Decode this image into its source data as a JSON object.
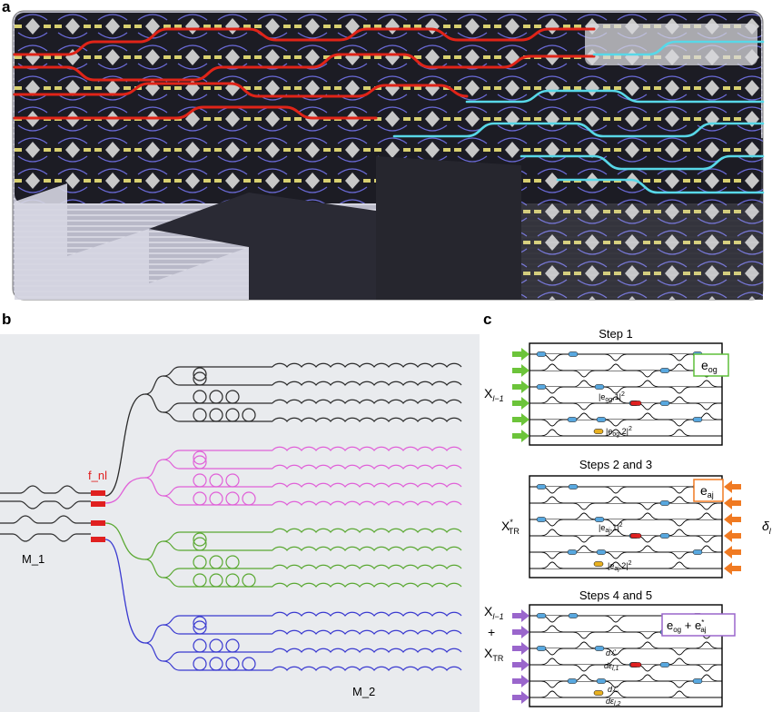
{
  "panels": {
    "a": {
      "letter": "a"
    },
    "b": {
      "letter": "b",
      "fnl_label": "f_nl",
      "m1_label": "M_1",
      "m2_label": "M_2",
      "colors": {
        "black": "#2b2b2b",
        "magenta": "#e060d8",
        "green": "#5aa832",
        "blue": "#3a3ad0",
        "red": "#e02020",
        "bg": "#e9ebee"
      }
    },
    "c": {
      "letter": "c",
      "step1": {
        "title": "Step 1",
        "x_label": "X",
        "x_sub": "l−1",
        "box_label": "e",
        "box_sub": "og",
        "ann1": "|e",
        "ann1_sub": "og",
        "ann1_tail": ",1|",
        "ann1_sup": "2",
        "ann2": "|e",
        "ann2_sub": "og",
        "ann2_tail": ",2|",
        "ann2_sup": "2",
        "arrow_color": "#6cc43a",
        "box_color": "#5fbf3a"
      },
      "step23": {
        "title": "Steps 2 and 3",
        "x_label": "X",
        "x_sup": "*",
        "x_sub": "TR",
        "box_label": "e",
        "box_sub": "aj",
        "delta": "δ",
        "delta_sub": "l",
        "ann1": "|e",
        "ann1_sub": "aj",
        "ann1_tail": ",1|",
        "ann1_sup": "2",
        "ann2": "|e",
        "ann2_sub": "aj",
        "ann2_tail": ",2|",
        "ann2_sup": "2",
        "arrow_color": "#f07a22",
        "box_color": "#f07a22"
      },
      "step45": {
        "title": "Steps 4 and 5",
        "x_top": "X",
        "x_top_sub": "l−1",
        "plus": "+",
        "x_bottom": "X",
        "x_bottom_sub": "TR",
        "box_label": "e",
        "box_sub1": "og",
        "box_plus": " + e",
        "box_sup": "*",
        "box_sub2": "aj",
        "d1": "dℒ",
        "d1_den": "dε",
        "d1_den_sub": "l,1",
        "d2": "dℒ",
        "d2_den": "dε",
        "d2_den_sub": "l,2",
        "arrow_color": "#9a66cc",
        "box_color": "#9a66cc"
      },
      "colors": {
        "phase_blue": "#58a8e0",
        "phase_red": "#e02020",
        "phase_yellow": "#e8b020"
      }
    }
  }
}
